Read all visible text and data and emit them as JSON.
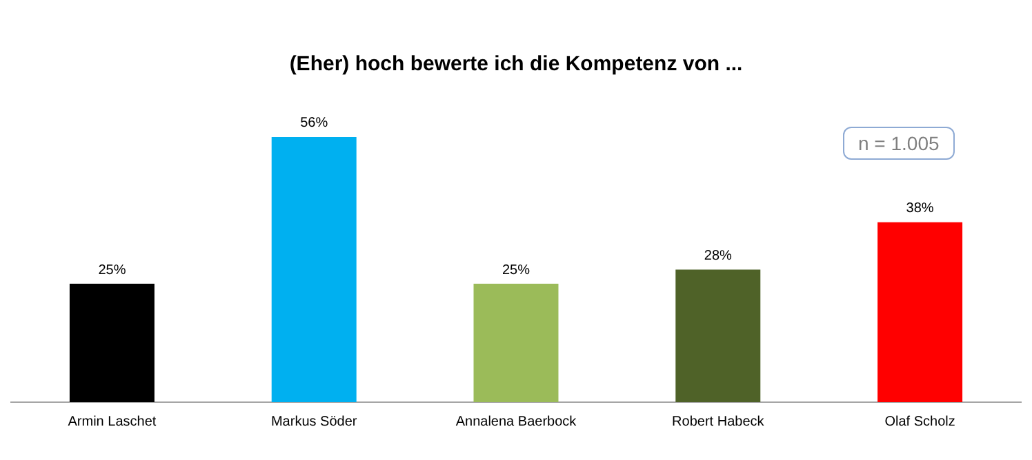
{
  "chart_data": {
    "type": "bar",
    "title": "(Eher) hoch bewerte ich die Kompetenz von ...",
    "categories": [
      "Armin Laschet",
      "Markus Söder",
      "Annalena Baerbock",
      "Robert Habeck",
      "Olaf Scholz"
    ],
    "values": [
      25,
      56,
      25,
      28,
      38
    ],
    "colors": [
      "#000000",
      "#00b0f0",
      "#9bbb59",
      "#4f6228",
      "#ff0000"
    ],
    "value_labels": [
      "25%",
      "56%",
      "25%",
      "28%",
      "38%"
    ],
    "tick_labels": "x",
    "grid": false,
    "legend": false,
    "annotations": [
      "n = 1.005"
    ]
  }
}
